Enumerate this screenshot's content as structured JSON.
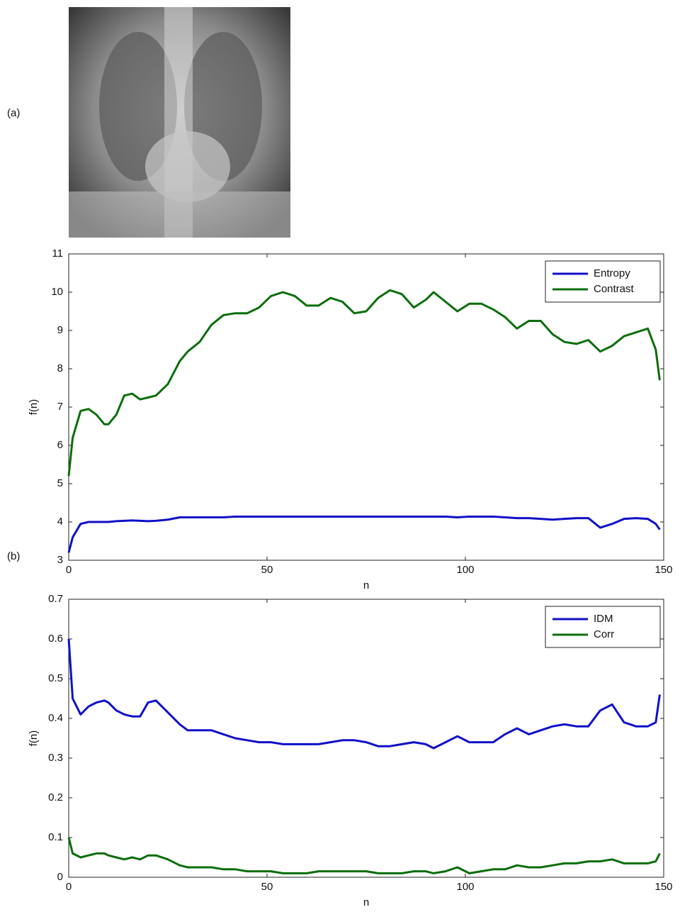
{
  "panel_labels": [
    "(a)",
    "(b)"
  ],
  "chart_data": [
    {
      "type": "line",
      "xlabel": "n",
      "ylabel": "f(n)",
      "xlim": [
        0,
        150
      ],
      "xticks": [
        0,
        50,
        100,
        150
      ],
      "ylim": [
        3,
        11
      ],
      "yticks": [
        3,
        4,
        5,
        6,
        7,
        8,
        9,
        10,
        11
      ],
      "legend": "upper right",
      "x": [
        0,
        1,
        3,
        5,
        7,
        9,
        10,
        12,
        14,
        16,
        18,
        20,
        22,
        25,
        28,
        30,
        33,
        36,
        39,
        42,
        45,
        48,
        51,
        54,
        57,
        60,
        63,
        66,
        69,
        72,
        75,
        78,
        81,
        84,
        87,
        90,
        92,
        95,
        98,
        101,
        104,
        107,
        110,
        113,
        116,
        119,
        122,
        125,
        128,
        131,
        134,
        137,
        140,
        143,
        146,
        148,
        149
      ],
      "series": [
        {
          "name": "Entropy",
          "color": "#1010c8",
          "values": [
            3.2,
            3.6,
            3.95,
            4.0,
            4.0,
            4.0,
            4.0,
            4.02,
            4.03,
            4.04,
            4.03,
            4.02,
            4.03,
            4.06,
            4.12,
            4.12,
            4.12,
            4.12,
            4.12,
            4.14,
            4.14,
            4.14,
            4.14,
            4.14,
            4.14,
            4.14,
            4.14,
            4.14,
            4.14,
            4.14,
            4.14,
            4.14,
            4.14,
            4.14,
            4.14,
            4.14,
            4.14,
            4.14,
            4.12,
            4.14,
            4.14,
            4.14,
            4.12,
            4.1,
            4.1,
            4.08,
            4.06,
            4.08,
            4.1,
            4.1,
            3.85,
            3.95,
            4.08,
            4.1,
            4.08,
            3.95,
            3.8
          ]
        },
        {
          "name": "Contrast",
          "color": "#0b6e0b",
          "values": [
            5.2,
            6.2,
            6.9,
            6.95,
            6.8,
            6.55,
            6.55,
            6.8,
            7.3,
            7.35,
            7.2,
            7.25,
            7.3,
            7.6,
            8.2,
            8.45,
            8.7,
            9.15,
            9.4,
            9.45,
            9.45,
            9.6,
            9.9,
            10.0,
            9.9,
            9.65,
            9.65,
            9.85,
            9.75,
            9.45,
            9.5,
            9.85,
            10.05,
            9.95,
            9.6,
            9.8,
            10.0,
            9.75,
            9.5,
            9.7,
            9.7,
            9.55,
            9.35,
            9.05,
            9.25,
            9.25,
            8.9,
            8.7,
            8.65,
            8.75,
            8.45,
            8.6,
            8.85,
            8.95,
            9.05,
            8.5,
            7.7
          ]
        }
      ]
    },
    {
      "type": "line",
      "xlabel": "n",
      "ylabel": "f(n)",
      "xlim": [
        0,
        150
      ],
      "xticks": [
        0,
        50,
        100,
        150
      ],
      "ylim": [
        0,
        0.7
      ],
      "yticks": [
        0,
        0.1,
        0.2,
        0.3,
        0.4,
        0.5,
        0.6,
        0.7
      ],
      "legend": "upper right",
      "x": [
        0,
        1,
        3,
        5,
        7,
        9,
        10,
        12,
        14,
        16,
        18,
        20,
        22,
        25,
        28,
        30,
        33,
        36,
        39,
        42,
        45,
        48,
        51,
        54,
        57,
        60,
        63,
        66,
        69,
        72,
        75,
        78,
        81,
        84,
        87,
        90,
        92,
        95,
        98,
        101,
        104,
        107,
        110,
        113,
        116,
        119,
        122,
        125,
        128,
        131,
        134,
        137,
        140,
        143,
        146,
        148,
        149
      ],
      "series": [
        {
          "name": "IDM",
          "color": "#1010c8",
          "values": [
            0.6,
            0.45,
            0.41,
            0.43,
            0.44,
            0.445,
            0.44,
            0.42,
            0.41,
            0.405,
            0.405,
            0.44,
            0.445,
            0.415,
            0.385,
            0.37,
            0.37,
            0.37,
            0.36,
            0.35,
            0.345,
            0.34,
            0.34,
            0.335,
            0.335,
            0.335,
            0.335,
            0.34,
            0.345,
            0.345,
            0.34,
            0.33,
            0.33,
            0.335,
            0.34,
            0.335,
            0.325,
            0.34,
            0.355,
            0.34,
            0.34,
            0.34,
            0.36,
            0.375,
            0.36,
            0.37,
            0.38,
            0.385,
            0.38,
            0.38,
            0.42,
            0.435,
            0.39,
            0.38,
            0.38,
            0.39,
            0.46
          ]
        },
        {
          "name": "Corr",
          "color": "#0b6e0b",
          "values": [
            0.1,
            0.06,
            0.05,
            0.055,
            0.06,
            0.06,
            0.055,
            0.05,
            0.045,
            0.05,
            0.045,
            0.055,
            0.055,
            0.045,
            0.03,
            0.025,
            0.025,
            0.025,
            0.02,
            0.02,
            0.015,
            0.015,
            0.015,
            0.01,
            0.01,
            0.01,
            0.015,
            0.015,
            0.015,
            0.015,
            0.015,
            0.01,
            0.01,
            0.01,
            0.015,
            0.015,
            0.01,
            0.015,
            0.025,
            0.01,
            0.015,
            0.02,
            0.02,
            0.03,
            0.025,
            0.025,
            0.03,
            0.035,
            0.035,
            0.04,
            0.04,
            0.045,
            0.035,
            0.035,
            0.035,
            0.04,
            0.06
          ]
        }
      ]
    }
  ]
}
